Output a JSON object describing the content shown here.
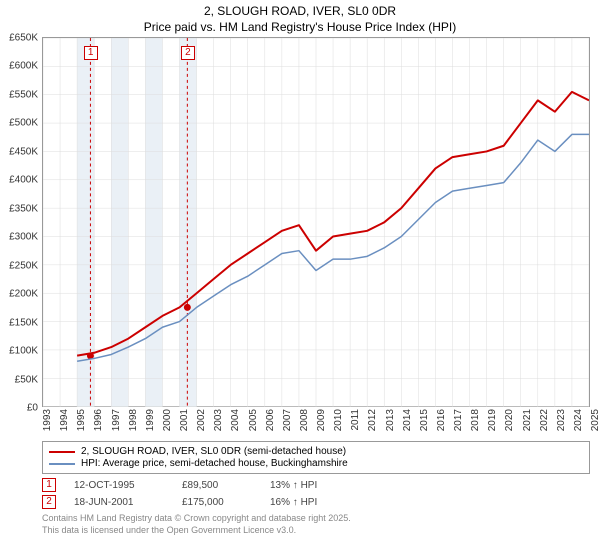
{
  "title": {
    "line1": "2, SLOUGH ROAD, IVER, SL0 0DR",
    "line2": "Price paid vs. HM Land Registry's House Price Index (HPI)"
  },
  "chart": {
    "type": "line",
    "background_color": "#ffffff",
    "grid_color": "#dddddd",
    "grid_minor_color": "#eeeeee",
    "axis_color": "#999999",
    "shaded_band_color": "#eaf0f6",
    "shaded_bands_x": [
      [
        1995,
        1996
      ],
      [
        1997,
        1998
      ],
      [
        1999,
        2000
      ],
      [
        2001,
        2002
      ]
    ],
    "xlim": [
      1993,
      2025
    ],
    "ylim": [
      0,
      650000
    ],
    "x_ticks": [
      1993,
      1994,
      1995,
      1996,
      1997,
      1998,
      1999,
      2000,
      2001,
      2002,
      2003,
      2004,
      2005,
      2006,
      2007,
      2008,
      2009,
      2010,
      2011,
      2012,
      2013,
      2014,
      2015,
      2016,
      2017,
      2018,
      2019,
      2020,
      2021,
      2022,
      2023,
      2024,
      2025
    ],
    "y_ticks": [
      0,
      50000,
      100000,
      150000,
      200000,
      250000,
      300000,
      350000,
      400000,
      450000,
      500000,
      550000,
      600000,
      650000
    ],
    "y_tick_labels": [
      "£0",
      "£50K",
      "£100K",
      "£150K",
      "£200K",
      "£250K",
      "£300K",
      "£350K",
      "£400K",
      "£450K",
      "£500K",
      "£550K",
      "£600K",
      "£650K"
    ],
    "label_fontsize": 10,
    "title_fontsize": 12,
    "line_width_primary": 2,
    "line_width_secondary": 1.5,
    "series": [
      {
        "name": "price_paid",
        "label": "2, SLOUGH ROAD, IVER, SL0 0DR (semi-detached house)",
        "color": "#cc0000",
        "x": [
          1995,
          1996,
          1997,
          1998,
          1999,
          2000,
          2001,
          2002,
          2003,
          2004,
          2005,
          2006,
          2007,
          2008,
          2009,
          2010,
          2011,
          2012,
          2013,
          2014,
          2015,
          2016,
          2017,
          2018,
          2019,
          2020,
          2021,
          2022,
          2023,
          2024,
          2025
        ],
        "y": [
          90000,
          95000,
          105000,
          120000,
          140000,
          160000,
          175000,
          200000,
          225000,
          250000,
          270000,
          290000,
          310000,
          320000,
          275000,
          300000,
          305000,
          310000,
          325000,
          350000,
          385000,
          420000,
          440000,
          445000,
          450000,
          460000,
          500000,
          540000,
          520000,
          555000,
          540000
        ]
      },
      {
        "name": "hpi",
        "label": "HPI: Average price, semi-detached house, Buckinghamshire",
        "color": "#6a8fc0",
        "x": [
          1995,
          1996,
          1997,
          1998,
          1999,
          2000,
          2001,
          2002,
          2003,
          2004,
          2005,
          2006,
          2007,
          2008,
          2009,
          2010,
          2011,
          2012,
          2013,
          2014,
          2015,
          2016,
          2017,
          2018,
          2019,
          2020,
          2021,
          2022,
          2023,
          2024,
          2025
        ],
        "y": [
          80000,
          85000,
          92000,
          105000,
          120000,
          140000,
          150000,
          175000,
          195000,
          215000,
          230000,
          250000,
          270000,
          275000,
          240000,
          260000,
          260000,
          265000,
          280000,
          300000,
          330000,
          360000,
          380000,
          385000,
          390000,
          395000,
          430000,
          470000,
          450000,
          480000,
          480000
        ]
      }
    ],
    "sale_markers": [
      {
        "n": "1",
        "x": 1995.78,
        "y": 89500
      },
      {
        "n": "2",
        "x": 2001.46,
        "y": 175000
      }
    ],
    "sale_marker_color": "#cc0000",
    "sale_marker_dash_color": "#cc0000"
  },
  "legend": {
    "items": [
      {
        "color": "#cc0000",
        "label": "2, SLOUGH ROAD, IVER, SL0 0DR (semi-detached house)"
      },
      {
        "color": "#6a8fc0",
        "label": "HPI: Average price, semi-detached house, Buckinghamshire"
      }
    ]
  },
  "sales": [
    {
      "n": "1",
      "date": "12-OCT-1995",
      "price": "£89,500",
      "delta": "13% ↑ HPI"
    },
    {
      "n": "2",
      "date": "18-JUN-2001",
      "price": "£175,000",
      "delta": "16% ↑ HPI"
    }
  ],
  "footer": {
    "line1": "Contains HM Land Registry data © Crown copyright and database right 2025.",
    "line2": "This data is licensed under the Open Government Licence v3.0."
  }
}
